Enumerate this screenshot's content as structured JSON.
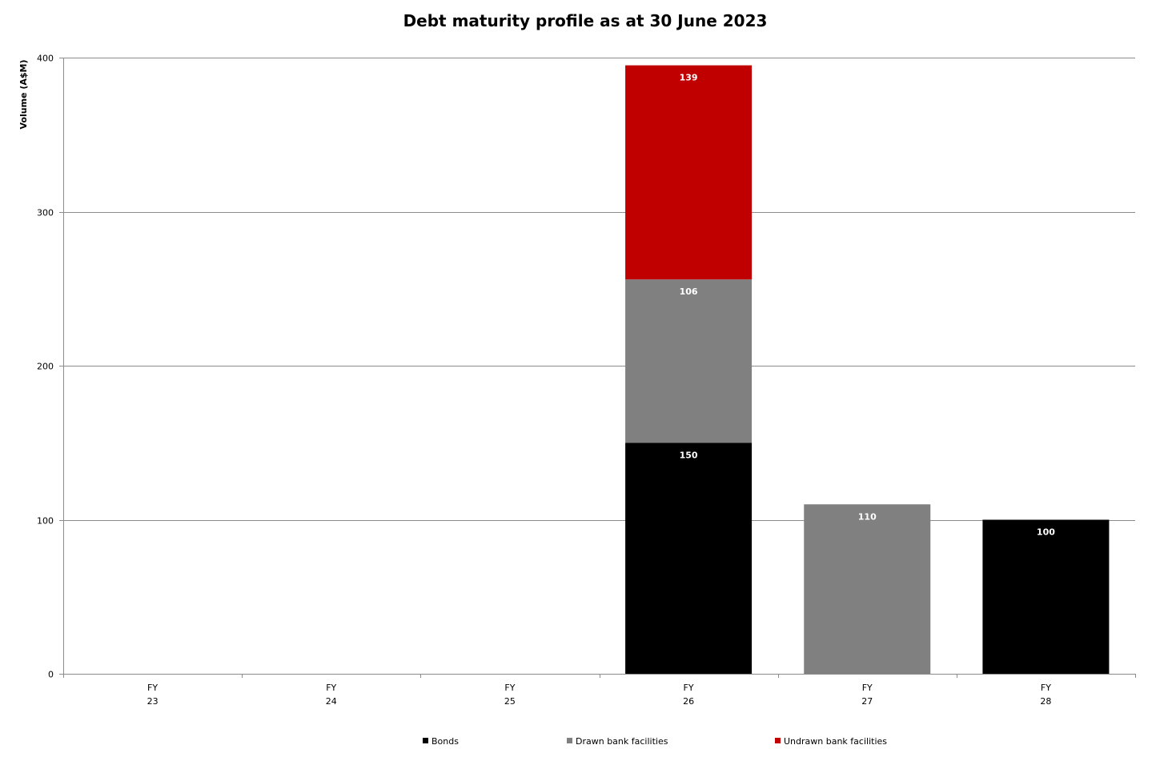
{
  "chart_data": {
    "type": "bar",
    "stacked": true,
    "title": "Debt maturity profile as at 30 June 2023",
    "xlabel": "",
    "ylabel": "Volume (A$M)",
    "ylim": [
      0,
      400
    ],
    "yticks": [
      "0",
      "100",
      "200",
      "300",
      "400"
    ],
    "grid": true,
    "legend_position": "bottom",
    "categories": [
      {
        "line1": "FY",
        "line2": "23"
      },
      {
        "line1": "FY",
        "line2": "24"
      },
      {
        "line1": "FY",
        "line2": "25"
      },
      {
        "line1": "FY",
        "line2": "26"
      },
      {
        "line1": "FY",
        "line2": "27"
      },
      {
        "line1": "FY",
        "line2": "28"
      }
    ],
    "series": [
      {
        "name": "Bonds",
        "color": "#000000",
        "values": [
          0,
          0,
          0,
          150,
          0,
          100
        ]
      },
      {
        "name": "Drawn bank facilities",
        "color": "#808080",
        "values": [
          0,
          0,
          0,
          106,
          110,
          0
        ]
      },
      {
        "name": "Undrawn bank facilities",
        "color": "#c00000",
        "values": [
          0,
          0,
          0,
          139,
          0,
          0
        ]
      }
    ]
  }
}
